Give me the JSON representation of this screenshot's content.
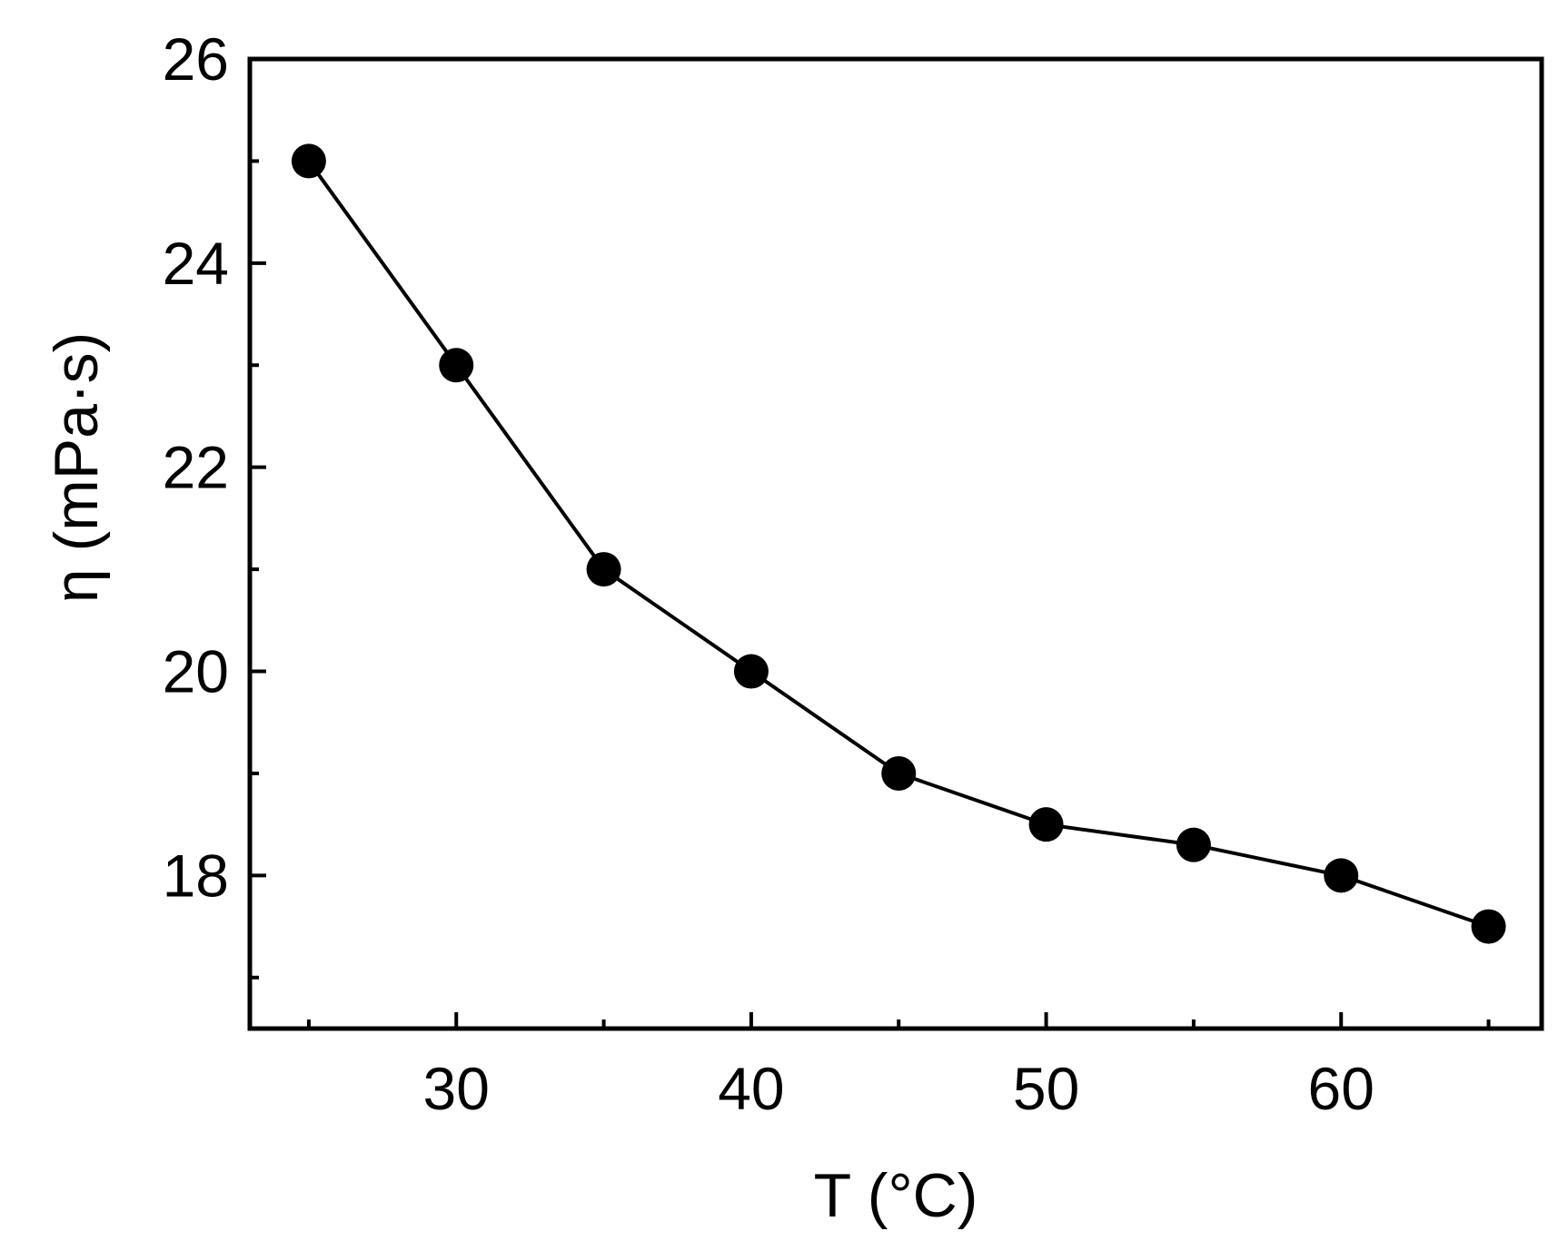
{
  "chart_data": {
    "type": "line",
    "title": "",
    "xlabel": "T (°C)",
    "ylabel": "η (mPa·s)",
    "x": [
      25,
      30,
      35,
      40,
      45,
      50,
      55,
      60,
      65
    ],
    "series": [
      {
        "values": [
          25.0,
          23.0,
          21.0,
          20.0,
          19.0,
          18.5,
          18.3,
          18.0,
          17.5
        ]
      }
    ],
    "xlim": [
      23,
      66.8
    ],
    "ylim": [
      16.5,
      26
    ],
    "xticks": [
      30,
      40,
      50,
      60
    ],
    "xticklabels": [
      "30",
      "40",
      "50",
      "60"
    ],
    "xminorticks": [
      25,
      35,
      45,
      55,
      65
    ],
    "yticks": [
      18,
      20,
      22,
      24,
      26
    ],
    "yticklabels": [
      "18",
      "20",
      "22",
      "24",
      "26"
    ],
    "yminorticks": [
      17,
      19,
      21,
      23,
      25
    ],
    "grid": false,
    "legend": "none",
    "marker": "filled-circle",
    "colors": {
      "line": "#000000",
      "marker": "#000000",
      "axes": "#000000"
    }
  }
}
